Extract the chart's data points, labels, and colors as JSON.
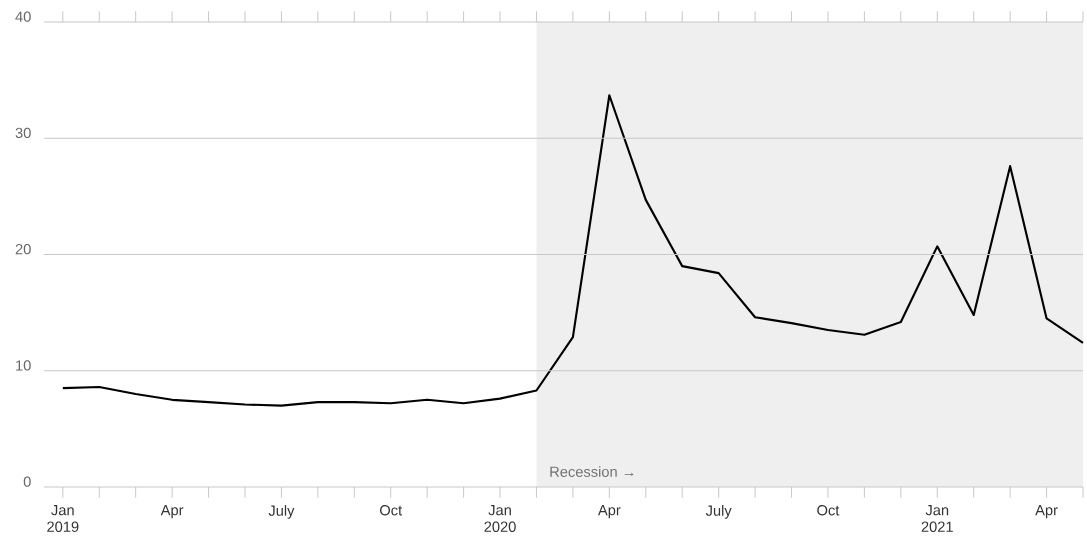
{
  "chart_data": {
    "type": "line",
    "x": [
      "2019-01",
      "2019-02",
      "2019-03",
      "2019-04",
      "2019-05",
      "2019-06",
      "2019-07",
      "2019-08",
      "2019-09",
      "2019-10",
      "2019-11",
      "2019-12",
      "2020-01",
      "2020-02",
      "2020-03",
      "2020-04",
      "2020-05",
      "2020-06",
      "2020-07",
      "2020-08",
      "2020-09",
      "2020-10",
      "2020-11",
      "2020-12",
      "2021-01",
      "2021-02",
      "2021-03",
      "2021-04",
      "2021-05"
    ],
    "series": [
      {
        "color": "#000000",
        "values": [
          8.5,
          8.6,
          8.0,
          7.5,
          7.3,
          7.1,
          7.0,
          7.3,
          7.3,
          7.2,
          7.5,
          7.2,
          7.6,
          8.3,
          12.9,
          33.7,
          24.7,
          19.0,
          18.4,
          14.6,
          14.1,
          13.5,
          13.1,
          14.2,
          20.7,
          14.8,
          27.6,
          14.5,
          12.4
        ]
      }
    ],
    "xlim": [
      "2018-12-16",
      "2021-05"
    ],
    "xticks": [
      {
        "value": "2019-01",
        "label": "Jan 2019"
      },
      {
        "value": "2019-02",
        "label": null
      },
      {
        "value": "2019-03",
        "label": null
      },
      {
        "value": "2019-04",
        "label": "Apr"
      },
      {
        "value": "2019-05",
        "label": null
      },
      {
        "value": "2019-06",
        "label": null
      },
      {
        "value": "2019-07",
        "label": "July"
      },
      {
        "value": "2019-08",
        "label": null
      },
      {
        "value": "2019-09",
        "label": null
      },
      {
        "value": "2019-10",
        "label": "Oct"
      },
      {
        "value": "2019-11",
        "label": null
      },
      {
        "value": "2019-12",
        "label": null
      },
      {
        "value": "2020-01",
        "label": "Jan 2020"
      },
      {
        "value": "2020-02",
        "label": null
      },
      {
        "value": "2020-03",
        "label": null
      },
      {
        "value": "2020-04",
        "label": "Apr"
      },
      {
        "value": "2020-05",
        "label": null
      },
      {
        "value": "2020-06",
        "label": null
      },
      {
        "value": "2020-07",
        "label": "July"
      },
      {
        "value": "2020-08",
        "label": null
      },
      {
        "value": "2020-09",
        "label": null
      },
      {
        "value": "2020-10",
        "label": "Oct"
      },
      {
        "value": "2020-11",
        "label": null
      },
      {
        "value": "2020-12",
        "label": null
      },
      {
        "value": "2021-01",
        "label": "Jan 2021"
      },
      {
        "value": "2021-02",
        "label": null
      },
      {
        "value": "2021-03",
        "label": null
      },
      {
        "value": "2021-04",
        "label": "Apr"
      },
      {
        "value": "2021-05",
        "label": null
      }
    ],
    "ylim": [
      0,
      40
    ],
    "yticks": [
      0,
      10,
      20,
      30,
      40
    ],
    "grid": "y",
    "marker": "none",
    "line_style": "solid",
    "bands": [
      {
        "axis": "x",
        "from": "2020-02",
        "to": "2021-05",
        "label": "Recession →",
        "color": "#efefef"
      }
    ]
  }
}
